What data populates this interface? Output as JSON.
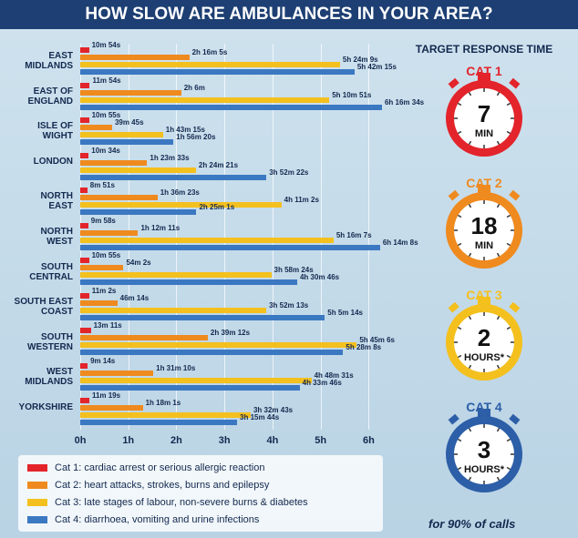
{
  "chart_data": {
    "type": "bar",
    "orientation": "horizontal",
    "title": "HOW SLOW ARE AMBULANCES IN YOUR AREA?",
    "categories": [
      "EAST\nMIDLANDS",
      "EAST OF\nENGLAND",
      "ISLE OF\nWIGHT",
      "LONDON",
      "NORTH\nEAST",
      "NORTH\nWEST",
      "SOUTH\nCENTRAL",
      "SOUTH EAST\nCOAST",
      "SOUTH\nWESTERN",
      "WEST\nMIDLANDS",
      "YORKSHIRE"
    ],
    "series": [
      {
        "name": "Cat 1: cardiac arrest or serious allergic reaction",
        "color": "#e3242b",
        "values": [
          10.9,
          11.9,
          10.917,
          10.567,
          8.85,
          9.967,
          10.917,
          11.033,
          13.183,
          9.233,
          11.317
        ],
        "value_labels": [
          "10m 54s",
          "11m 54s",
          "10m 55s",
          "10m 34s",
          "8m 51s",
          "9m 58s",
          "10m 55s",
          "11m 2s",
          "13m 11s",
          "9m 14s",
          "11m 19s"
        ]
      },
      {
        "name": "Cat 2: heart attacks, strokes, burns and epilepsy",
        "color": "#ef8a1f",
        "values": [
          136.083,
          126,
          39.75,
          83.55,
          96.383,
          72.183,
          54.033,
          46.233,
          159.2,
          91.167,
          78.017
        ],
        "value_labels": [
          "2h 16m 5s",
          "2h 6m",
          "39m 45s",
          "1h 23m 33s",
          "1h 36m 23s",
          "1h 12m 11s",
          "54m 2s",
          "46m 14s",
          "2h 39m 12s",
          "1h 31m 10s",
          "1h 18m 1s"
        ]
      },
      {
        "name": "Cat 3: late stages of labour, non-severe burns & diabetes",
        "color": "#f4c01e",
        "values": [
          324.15,
          310.85,
          103.25,
          144.35,
          251.033,
          316.117,
          238.4,
          232.217,
          345.1,
          288.517,
          212.717
        ],
        "value_labels": [
          "5h 24m 9s",
          "5h 10m 51s",
          "1h 43m 15s",
          "2h 24m 21s",
          "4h 11m 2s",
          "5h 16m 7s",
          "3h 58m 24s",
          "3h 52m 13s",
          "5h 45m 6s",
          "4h 48m 31s",
          "3h 32m 43s"
        ]
      },
      {
        "name": "Cat 4: diarrhoea, vomiting and urine infections",
        "color": "#3b78c2",
        "values": [
          342.25,
          376.567,
          116.333,
          232.367,
          145.017,
          374.133,
          270.767,
          305.233,
          328.133,
          273.767,
          195.733
        ],
        "value_labels": [
          "5h 42m 15s",
          "6h 16m 34s",
          "1h 56m 20s",
          "3h 52m 22s",
          "2h 25m 1s",
          "6h 14m 8s",
          "4h 30m 46s",
          "5h 5m 14s",
          "5h 28m 8s",
          "4h 33m 46s",
          "3h 15m 44s"
        ]
      }
    ],
    "xlim": [
      0,
      380
    ],
    "xticks": [
      {
        "value": 0,
        "label": "0h"
      },
      {
        "value": 60,
        "label": "1h"
      },
      {
        "value": 120,
        "label": "2h"
      },
      {
        "value": 180,
        "label": "3h"
      },
      {
        "value": 240,
        "label": "4h"
      },
      {
        "value": 300,
        "label": "5h"
      },
      {
        "value": 360,
        "label": "6h"
      }
    ],
    "grid": true,
    "targets_title": "TARGET RESPONSE TIME",
    "targets": [
      {
        "name": "CAT 1",
        "value": 7,
        "unit": "MIN",
        "color": "#e3242b"
      },
      {
        "name": "CAT 2",
        "value": 18,
        "unit": "MIN",
        "color": "#ef8a1f"
      },
      {
        "name": "CAT 3",
        "value": 2,
        "unit": "HOURS*",
        "color": "#f4c01e"
      },
      {
        "name": "CAT 4",
        "value": 3,
        "unit": "HOURS*",
        "color": "#2d5ea8"
      }
    ],
    "footnote": "for 90% of calls"
  }
}
